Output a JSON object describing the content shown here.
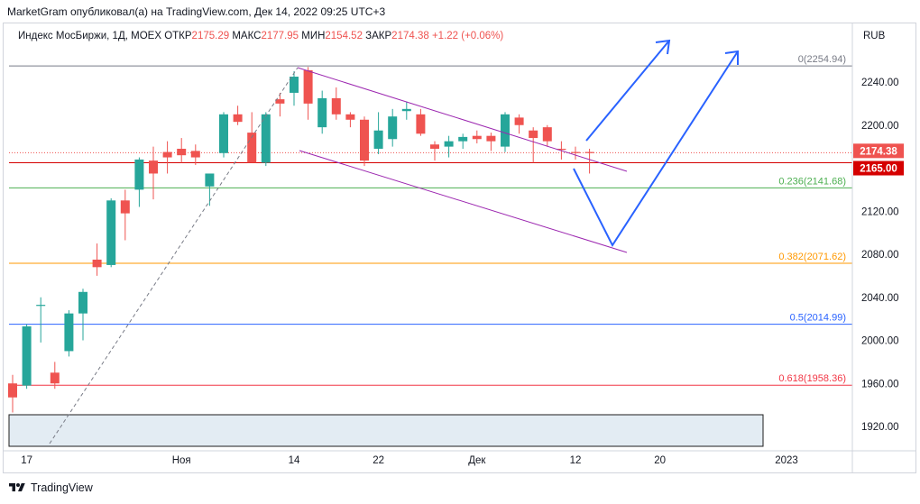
{
  "caption": "MarketGram опубликовал(а) на TradingView.com, Дек 14, 2022 09:25 UTC+3",
  "legend": {
    "symbol": "Индекс МосБиржи, 1Д, MOEX",
    "open_label": "ОТКР",
    "open_value": "2175.29",
    "high_label": "МАКС",
    "high_value": "2177.95",
    "low_label": "МИН",
    "low_value": "2154.52",
    "close_label": "ЗАКР",
    "close_value": "2174.38",
    "change": "+1.22 (+0.06%)"
  },
  "unit_label": "RUB",
  "footer": {
    "brand": "TradingView",
    "logo_icon": "tradingview-logo-icon"
  },
  "colors": {
    "up": "#26a69a",
    "down": "#ef5350",
    "arrow": "#2962ff",
    "channel": "#9c27b0"
  },
  "chart_data": {
    "type": "candlestick",
    "ylim": [
      1900,
      2270
    ],
    "y_ticks": [
      1920,
      1960,
      2000,
      2040,
      2080,
      2120,
      2160,
      2200,
      2240
    ],
    "y_tick_labels": [
      "1920.00",
      "1960.00",
      "2000.00",
      "2040.00",
      "2080.00",
      "2120.00",
      "2160.00",
      "2200.00",
      "2240.00"
    ],
    "x_ticks": [
      {
        "bar": 1,
        "label": "17"
      },
      {
        "bar": 12,
        "label": "Ноя"
      },
      {
        "bar": 20,
        "label": "14"
      },
      {
        "bar": 26,
        "label": "22"
      },
      {
        "bar": 33,
        "label": "Дек"
      },
      {
        "bar": 40,
        "label": "12"
      },
      {
        "bar": 46,
        "label": "20"
      },
      {
        "bar": 55,
        "label": "2023"
      }
    ],
    "candles": [
      {
        "o": 1960,
        "h": 1968,
        "l": 1933,
        "c": 1947
      },
      {
        "o": 1958,
        "h": 2015,
        "l": 1955,
        "c": 2013
      },
      {
        "o": 2033,
        "h": 2040,
        "l": 1998,
        "c": 2033
      },
      {
        "o": 1970,
        "h": 1980,
        "l": 1955,
        "c": 1960
      },
      {
        "o": 1990,
        "h": 2028,
        "l": 1985,
        "c": 2025
      },
      {
        "o": 2025,
        "h": 2048,
        "l": 2000,
        "c": 2045
      },
      {
        "o": 2075,
        "h": 2090,
        "l": 2060,
        "c": 2068
      },
      {
        "o": 2070,
        "h": 2132,
        "l": 2068,
        "c": 2130
      },
      {
        "o": 2130,
        "h": 2140,
        "l": 2093,
        "c": 2118
      },
      {
        "o": 2140,
        "h": 2170,
        "l": 2124,
        "c": 2168
      },
      {
        "o": 2167,
        "h": 2180,
        "l": 2131,
        "c": 2155
      },
      {
        "o": 2175,
        "h": 2185,
        "l": 2155,
        "c": 2170
      },
      {
        "o": 2178,
        "h": 2188,
        "l": 2165,
        "c": 2172
      },
      {
        "o": 2176,
        "h": 2182,
        "l": 2163,
        "c": 2170
      },
      {
        "o": 2143,
        "h": 2153,
        "l": 2125,
        "c": 2155
      },
      {
        "o": 2174,
        "h": 2212,
        "l": 2170,
        "c": 2210
      },
      {
        "o": 2210,
        "h": 2218,
        "l": 2200,
        "c": 2203
      },
      {
        "o": 2193,
        "h": 2212,
        "l": 2165,
        "c": 2165
      },
      {
        "o": 2165,
        "h": 2212,
        "l": 2162,
        "c": 2210
      },
      {
        "o": 2224,
        "h": 2230,
        "l": 2208,
        "c": 2220
      },
      {
        "o": 2230,
        "h": 2250,
        "l": 2218,
        "c": 2245
      },
      {
        "o": 2251,
        "h": 2254,
        "l": 2205,
        "c": 2220
      },
      {
        "o": 2198,
        "h": 2232,
        "l": 2192,
        "c": 2225
      },
      {
        "o": 2225,
        "h": 2235,
        "l": 2205,
        "c": 2210
      },
      {
        "o": 2210,
        "h": 2212,
        "l": 2198,
        "c": 2205
      },
      {
        "o": 2205,
        "h": 2208,
        "l": 2162,
        "c": 2167
      },
      {
        "o": 2178,
        "h": 2212,
        "l": 2173,
        "c": 2195
      },
      {
        "o": 2187,
        "h": 2215,
        "l": 2180,
        "c": 2208
      },
      {
        "o": 2213,
        "h": 2222,
        "l": 2205,
        "c": 2215
      },
      {
        "o": 2210,
        "h": 2215,
        "l": 2190,
        "c": 2192
      },
      {
        "o": 2182,
        "h": 2185,
        "l": 2167,
        "c": 2178
      },
      {
        "o": 2180,
        "h": 2190,
        "l": 2170,
        "c": 2185
      },
      {
        "o": 2185,
        "h": 2192,
        "l": 2178,
        "c": 2189
      },
      {
        "o": 2190,
        "h": 2195,
        "l": 2183,
        "c": 2187
      },
      {
        "o": 2190,
        "h": 2193,
        "l": 2176,
        "c": 2185
      },
      {
        "o": 2180,
        "h": 2212,
        "l": 2175,
        "c": 2210
      },
      {
        "o": 2207,
        "h": 2210,
        "l": 2192,
        "c": 2200
      },
      {
        "o": 2195,
        "h": 2198,
        "l": 2165,
        "c": 2188
      },
      {
        "o": 2198,
        "h": 2200,
        "l": 2180,
        "c": 2185
      },
      {
        "o": 2178,
        "h": 2185,
        "l": 2168,
        "c": 2177
      },
      {
        "o": 2175,
        "h": 2180,
        "l": 2168,
        "c": 2174
      },
      {
        "o": 2175,
        "h": 2178,
        "l": 2155,
        "c": 2174
      }
    ],
    "price_labels": [
      {
        "value": 2174.38,
        "text": "2174.38",
        "color": "#ef5350"
      },
      {
        "value": 2165.0,
        "text": "2165.00",
        "color": "#d50000"
      }
    ],
    "fib_levels": [
      {
        "value": 2254.94,
        "text": "0(2254.94)",
        "color": "#787b86"
      },
      {
        "value": 2141.68,
        "text": "0.236(2141.68)",
        "color": "#4caf50"
      },
      {
        "value": 2071.62,
        "text": "0.382(2071.62)",
        "color": "#ff9800"
      },
      {
        "value": 2014.99,
        "text": "0.5(2014.99)",
        "color": "#2962ff"
      },
      {
        "value": 1958.36,
        "text": "0.618(1958.36)",
        "color": "#f23645"
      }
    ],
    "horizontal_line": {
      "value": 2165.0,
      "color": "#d50000"
    }
  }
}
